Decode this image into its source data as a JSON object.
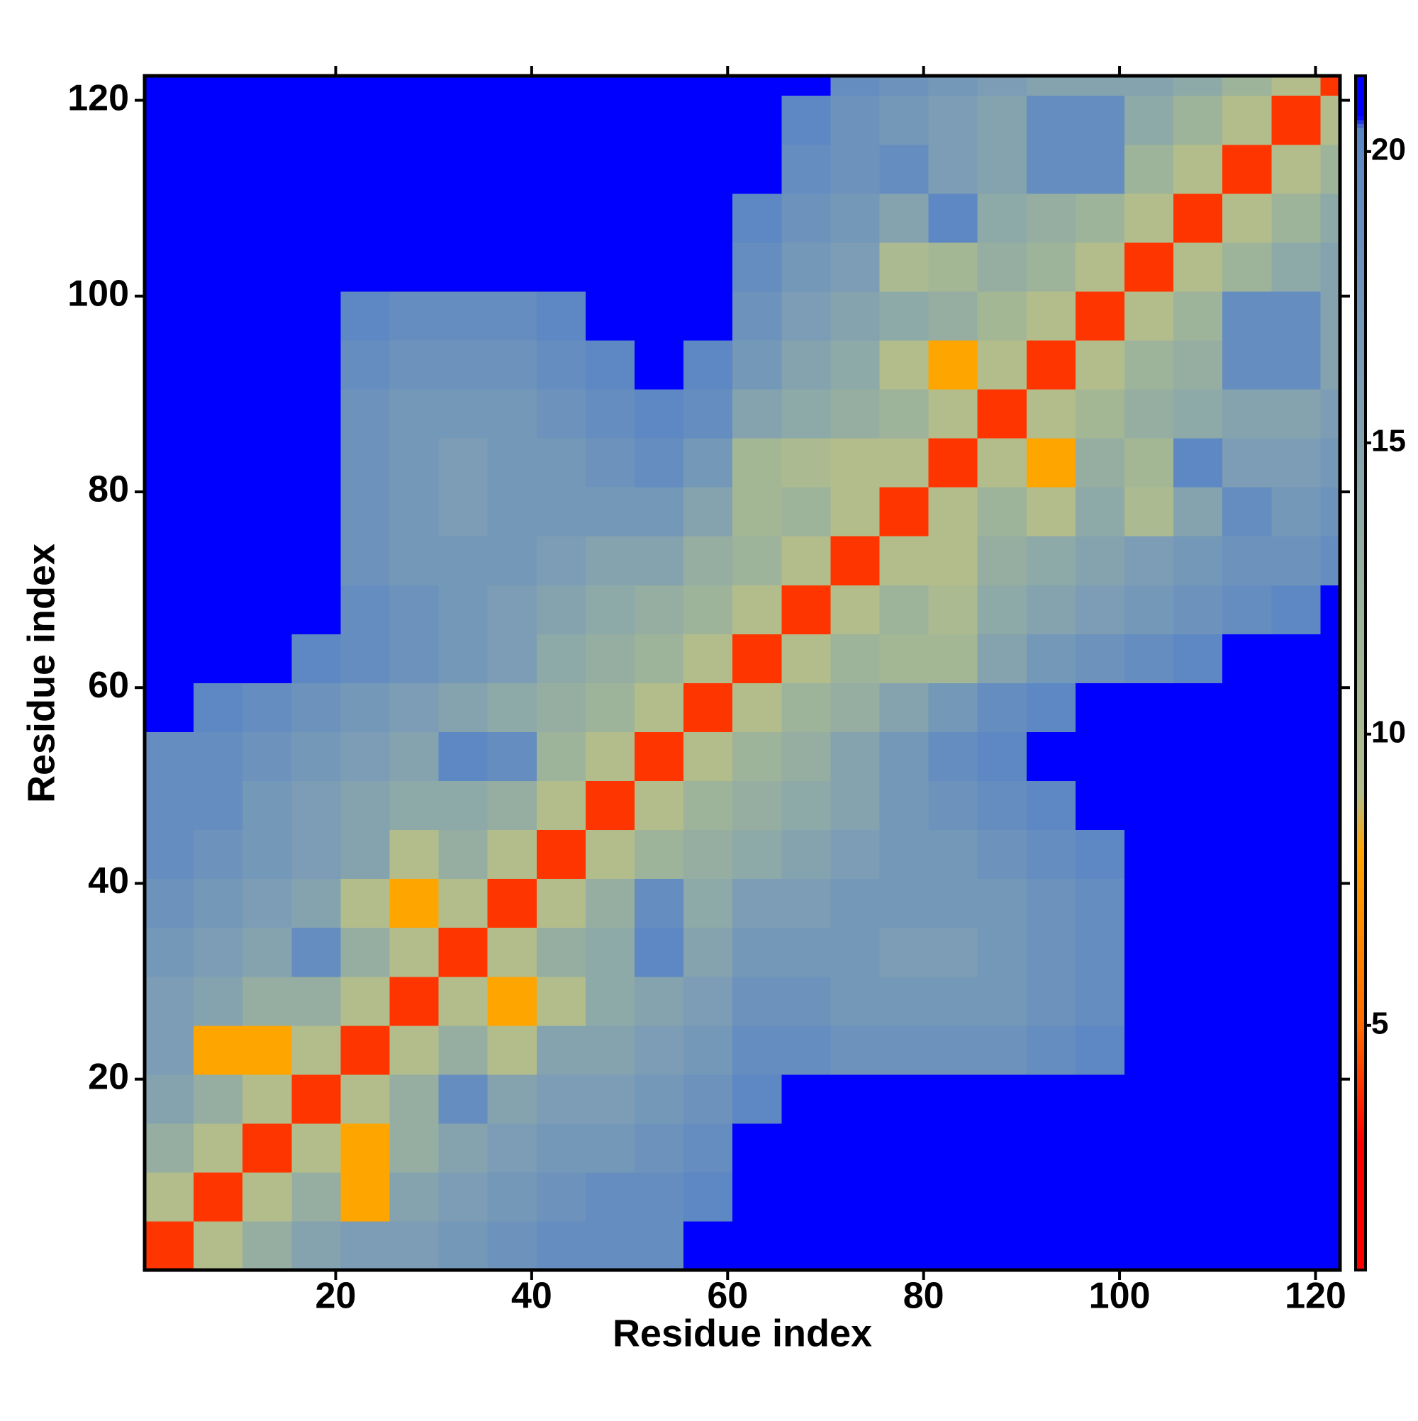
{
  "chart_data": {
    "type": "heatmap",
    "xlabel": "Residue index",
    "ylabel": "Residue index",
    "xbins": [
      0.5,
      5.5,
      10.5,
      15.5,
      20.5,
      25.5,
      30.5,
      35.5,
      40.5,
      45.5,
      50.5,
      55.5,
      60.5,
      65.5,
      70.5,
      75.5,
      80.5,
      85.5,
      90.5,
      95.5,
      100.5,
      105.5,
      110.5,
      115.5,
      120.5,
      122.5
    ],
    "ybins": [
      0.5,
      5.5,
      10.5,
      15.5,
      20.5,
      25.5,
      30.5,
      35.5,
      40.5,
      45.5,
      50.5,
      55.5,
      60.5,
      65.5,
      70.5,
      75.5,
      80.5,
      85.5,
      90.5,
      95.5,
      100.5,
      105.5,
      110.5,
      115.5,
      120.5,
      122.5
    ],
    "values": [
      [
        4,
        9,
        13,
        15,
        16,
        16,
        17,
        18,
        19,
        19,
        19,
        21,
        21,
        21,
        21,
        21,
        21,
        21,
        21,
        21,
        21,
        21,
        21,
        21,
        21
      ],
      [
        9,
        4,
        9,
        13,
        8,
        15,
        16,
        17,
        18,
        19,
        19,
        20,
        21,
        21,
        21,
        21,
        21,
        21,
        21,
        21,
        21,
        21,
        21,
        21,
        21
      ],
      [
        13,
        9,
        4,
        9,
        8,
        13,
        15,
        16,
        17,
        17,
        18,
        19,
        21,
        21,
        21,
        21,
        21,
        21,
        21,
        21,
        21,
        21,
        21,
        21,
        21
      ],
      [
        15,
        13,
        9,
        4,
        9,
        13,
        19,
        15,
        16,
        16,
        17,
        18,
        20,
        21,
        21,
        21,
        21,
        21,
        21,
        21,
        21,
        21,
        21,
        21,
        21
      ],
      [
        16,
        8,
        8,
        9,
        4,
        9,
        13,
        9,
        15,
        15,
        16,
        17,
        19,
        19,
        18,
        18,
        18,
        18,
        19,
        20,
        21,
        21,
        21,
        21,
        21
      ],
      [
        16,
        15,
        13,
        13,
        9,
        4,
        9,
        8,
        9,
        14,
        15,
        16,
        18,
        18,
        17,
        17,
        17,
        17,
        18,
        19,
        21,
        21,
        21,
        21,
        21
      ],
      [
        17,
        16,
        15,
        19,
        13,
        9,
        4,
        9,
        13,
        14,
        20,
        15,
        17,
        17,
        17,
        16,
        16,
        17,
        18,
        19,
        21,
        21,
        21,
        21,
        21
      ],
      [
        18,
        17,
        16,
        15,
        9,
        8,
        9,
        4,
        9,
        13,
        19,
        14,
        16,
        16,
        17,
        17,
        17,
        17,
        18,
        19,
        21,
        21,
        21,
        21,
        21
      ],
      [
        19,
        18,
        17,
        16,
        15,
        9,
        13,
        9,
        4,
        9,
        12,
        13,
        14,
        15,
        16,
        17,
        17,
        18,
        19,
        20,
        21,
        21,
        21,
        21,
        21
      ],
      [
        19,
        19,
        17,
        16,
        15,
        14,
        14,
        13,
        9,
        4,
        9,
        12,
        13,
        14,
        15,
        17,
        18,
        19,
        20,
        21,
        21,
        21,
        21,
        21,
        21
      ],
      [
        19,
        19,
        18,
        17,
        16,
        15,
        20,
        19,
        12,
        9,
        4,
        9,
        12,
        13,
        15,
        17,
        19,
        20,
        21,
        21,
        21,
        21,
        21,
        21,
        21
      ],
      [
        21,
        20,
        19,
        18,
        17,
        16,
        15,
        14,
        13,
        12,
        9,
        4,
        9,
        12,
        13,
        15,
        17,
        19,
        20,
        21,
        21,
        21,
        21,
        21,
        21
      ],
      [
        21,
        21,
        21,
        20,
        19,
        18,
        17,
        16,
        14,
        13,
        12,
        9,
        4,
        9,
        12,
        11,
        11,
        15,
        17,
        18,
        19,
        20,
        21,
        21,
        21
      ],
      [
        21,
        21,
        21,
        21,
        19,
        18,
        17,
        16,
        15,
        14,
        13,
        12,
        9,
        4,
        9,
        12,
        10,
        14,
        15,
        16,
        17,
        18,
        19,
        20,
        21
      ],
      [
        21,
        21,
        21,
        21,
        18,
        17,
        17,
        17,
        16,
        15,
        15,
        13,
        12,
        9,
        4,
        9,
        9,
        13,
        14,
        15,
        16,
        17,
        18,
        18,
        19
      ],
      [
        21,
        21,
        21,
        21,
        18,
        17,
        16,
        17,
        17,
        17,
        17,
        15,
        11,
        12,
        9,
        4,
        9,
        12,
        9,
        14,
        10,
        15,
        19,
        17,
        18
      ],
      [
        21,
        21,
        21,
        21,
        18,
        17,
        16,
        17,
        17,
        18,
        19,
        17,
        11,
        10,
        9,
        9,
        4,
        9,
        8,
        13,
        11,
        20,
        16,
        16,
        17
      ],
      [
        21,
        21,
        21,
        21,
        18,
        17,
        17,
        17,
        18,
        19,
        20,
        19,
        15,
        14,
        13,
        12,
        9,
        4,
        9,
        11,
        13,
        14,
        15,
        15,
        16
      ],
      [
        21,
        21,
        21,
        21,
        19,
        18,
        18,
        18,
        19,
        20,
        21,
        20,
        17,
        15,
        14,
        9,
        8,
        9,
        4,
        9,
        12,
        13,
        19,
        19,
        15
      ],
      [
        21,
        21,
        21,
        21,
        20,
        19,
        19,
        19,
        20,
        21,
        21,
        21,
        18,
        16,
        15,
        14,
        13,
        11,
        9,
        4,
        9,
        12,
        19,
        19,
        15
      ],
      [
        21,
        21,
        21,
        21,
        21,
        21,
        21,
        21,
        21,
        21,
        21,
        21,
        19,
        17,
        16,
        10,
        11,
        13,
        12,
        9,
        4,
        9,
        12,
        14,
        15
      ],
      [
        21,
        21,
        21,
        21,
        21,
        21,
        21,
        21,
        21,
        21,
        21,
        21,
        20,
        18,
        17,
        15,
        20,
        14,
        13,
        12,
        9,
        4,
        9,
        12,
        14
      ],
      [
        21,
        21,
        21,
        21,
        21,
        21,
        21,
        21,
        21,
        21,
        21,
        21,
        21,
        19,
        18,
        19,
        16,
        15,
        19,
        19,
        12,
        9,
        4,
        9,
        12
      ],
      [
        21,
        21,
        21,
        21,
        21,
        21,
        21,
        21,
        21,
        21,
        21,
        21,
        21,
        20,
        18,
        17,
        16,
        15,
        19,
        19,
        14,
        12,
        9,
        4,
        9
      ],
      [
        21,
        21,
        21,
        21,
        21,
        21,
        21,
        21,
        21,
        21,
        21,
        21,
        21,
        21,
        19,
        18,
        17,
        16,
        15,
        15,
        15,
        14,
        12,
        9,
        4
      ]
    ],
    "xlim": [
      0.5,
      122.5
    ],
    "ylim": [
      0.5,
      122.5
    ],
    "xticks": [
      20,
      40,
      60,
      80,
      100,
      120
    ],
    "yticks": [
      20,
      40,
      60,
      80,
      100,
      120
    ],
    "clim": [
      0.8,
      21.3
    ],
    "cticks": [
      5,
      10,
      15,
      20
    ],
    "colorscale": [
      [
        0.8,
        "#ff0000"
      ],
      [
        3,
        "#ff0000"
      ],
      [
        5,
        "#ff6a00"
      ],
      [
        8,
        "#ffa500"
      ],
      [
        9,
        "#b3bd8c"
      ],
      [
        12,
        "#9db49a"
      ],
      [
        16,
        "#7c9db5"
      ],
      [
        20.4,
        "#5a86c4"
      ],
      [
        20.6,
        "#0000ff"
      ],
      [
        21.3,
        "#0000ff"
      ]
    ]
  }
}
